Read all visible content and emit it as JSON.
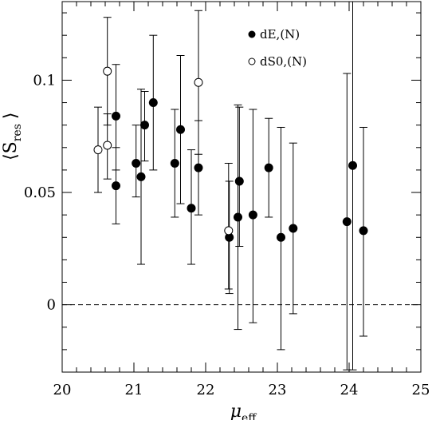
{
  "chart_data": {
    "type": "scatter",
    "xlabel": "μ",
    "xlabel_subscript": "eff",
    "ylabel": "⟨S",
    "ylabel_subscript": "res",
    "ylabel_close": "⟩",
    "xlim": [
      20,
      25
    ],
    "ylim": [
      -0.03,
      0.135
    ],
    "x_ticks": [
      20,
      21,
      22,
      23,
      24,
      25
    ],
    "x_tick_labels": [
      "20",
      "21",
      "22",
      "23",
      "24",
      "25"
    ],
    "y_ticks": [
      0,
      0.05,
      0.1
    ],
    "y_tick_labels": [
      "0",
      "0.05",
      "0.1"
    ],
    "grid": false,
    "legend_placement": "top-right",
    "reference_line": {
      "y": 0,
      "style": "dashed"
    },
    "series": [
      {
        "name": "dE,(N)",
        "marker": "filled-circle",
        "points": [
          {
            "x": 20.75,
            "y": 0.084,
            "ylo": 0.06,
            "yhi": 0.107
          },
          {
            "x": 20.75,
            "y": 0.053,
            "ylo": 0.036,
            "yhi": 0.07
          },
          {
            "x": 21.03,
            "y": 0.063,
            "ylo": 0.048,
            "yhi": 0.08
          },
          {
            "x": 21.1,
            "y": 0.057,
            "ylo": 0.018,
            "yhi": 0.096
          },
          {
            "x": 21.15,
            "y": 0.08,
            "ylo": 0.064,
            "yhi": 0.095
          },
          {
            "x": 21.27,
            "y": 0.09,
            "ylo": 0.06,
            "yhi": 0.12
          },
          {
            "x": 21.57,
            "y": 0.063,
            "ylo": 0.039,
            "yhi": 0.087
          },
          {
            "x": 21.65,
            "y": 0.078,
            "ylo": 0.045,
            "yhi": 0.111
          },
          {
            "x": 21.8,
            "y": 0.043,
            "ylo": 0.018,
            "yhi": 0.069
          },
          {
            "x": 21.9,
            "y": 0.061,
            "ylo": 0.04,
            "yhi": 0.082
          },
          {
            "x": 22.33,
            "y": 0.03,
            "ylo": 0.005,
            "yhi": 0.055
          },
          {
            "x": 22.45,
            "y": 0.039,
            "ylo": -0.011,
            "yhi": 0.089
          },
          {
            "x": 22.47,
            "y": 0.055,
            "ylo": 0.026,
            "yhi": 0.088
          },
          {
            "x": 22.66,
            "y": 0.04,
            "ylo": -0.008,
            "yhi": 0.087
          },
          {
            "x": 22.88,
            "y": 0.061,
            "ylo": 0.039,
            "yhi": 0.083
          },
          {
            "x": 23.05,
            "y": 0.03,
            "ylo": -0.02,
            "yhi": 0.079
          },
          {
            "x": 23.22,
            "y": 0.034,
            "ylo": -0.004,
            "yhi": 0.072
          },
          {
            "x": 23.97,
            "y": 0.037,
            "ylo": -0.029,
            "yhi": 0.103
          },
          {
            "x": 24.05,
            "y": 0.062,
            "ylo": -0.029,
            "yhi": 0.135
          },
          {
            "x": 24.2,
            "y": 0.033,
            "ylo": -0.014,
            "yhi": 0.079
          }
        ]
      },
      {
        "name": "dS0,(N)",
        "marker": "open-circle",
        "points": [
          {
            "x": 20.5,
            "y": 0.069,
            "ylo": 0.05,
            "yhi": 0.088
          },
          {
            "x": 20.63,
            "y": 0.104,
            "ylo": 0.08,
            "yhi": 0.128
          },
          {
            "x": 20.63,
            "y": 0.071,
            "ylo": 0.056,
            "yhi": 0.085
          },
          {
            "x": 21.9,
            "y": 0.099,
            "ylo": 0.067,
            "yhi": 0.131
          },
          {
            "x": 22.32,
            "y": 0.033,
            "ylo": 0.007,
            "yhi": 0.063
          }
        ]
      }
    ]
  }
}
